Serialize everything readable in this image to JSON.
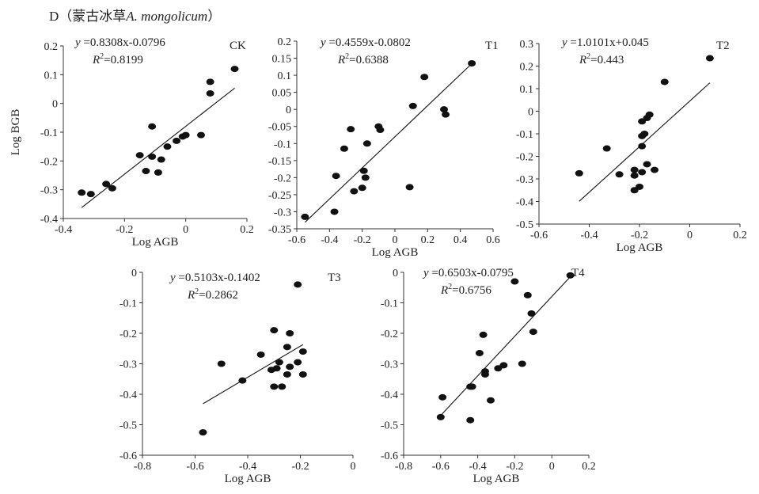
{
  "figure_title": {
    "prefix": "D（蒙古冰草",
    "latin": "A. mongolicum",
    "suffix": "）"
  },
  "chart_data": [
    {
      "type": "scatter",
      "panel_label": "CK",
      "xlabel": "Log AGB",
      "ylabel": "Log BGB",
      "xlim": [
        -0.4,
        0.2
      ],
      "ylim": [
        -0.4,
        0.2
      ],
      "xticks": [
        -0.4,
        -0.2,
        0,
        0.2
      ],
      "yticks": [
        -0.4,
        -0.3,
        -0.2,
        -0.1,
        0,
        0.1,
        0.2
      ],
      "equation": {
        "slope": "0.8308",
        "intercept": "-0.0796",
        "r2": "0.8199"
      },
      "fit": {
        "slope": 0.8308,
        "intercept": -0.0796,
        "x_range": [
          -0.34,
          0.16
        ]
      },
      "points": [
        [
          -0.34,
          -0.31
        ],
        [
          -0.31,
          -0.315
        ],
        [
          -0.26,
          -0.28
        ],
        [
          -0.24,
          -0.295
        ],
        [
          -0.15,
          -0.18
        ],
        [
          -0.13,
          -0.235
        ],
        [
          -0.11,
          -0.08
        ],
        [
          -0.11,
          -0.185
        ],
        [
          -0.09,
          -0.24
        ],
        [
          -0.08,
          -0.195
        ],
        [
          -0.06,
          -0.15
        ],
        [
          -0.03,
          -0.13
        ],
        [
          -0.01,
          -0.115
        ],
        [
          0.0,
          -0.11
        ],
        [
          0.05,
          -0.11
        ],
        [
          0.08,
          0.075
        ],
        [
          0.08,
          0.035
        ],
        [
          0.16,
          0.12
        ]
      ]
    },
    {
      "type": "scatter",
      "panel_label": "T1",
      "xlabel": "Log AGB",
      "ylabel": "",
      "xlim": [
        -0.6,
        0.6
      ],
      "ylim": [
        -0.35,
        0.2
      ],
      "xticks": [
        -0.6,
        -0.4,
        -0.2,
        0,
        0.2,
        0.4,
        0.6
      ],
      "yticks": [
        -0.35,
        -0.3,
        -0.25,
        -0.2,
        -0.15,
        -0.1,
        -0.05,
        0,
        0.05,
        0.1,
        0.15,
        0.2
      ],
      "equation": {
        "slope": "0.4559",
        "intercept": "-0.0802",
        "r2": "0.6388"
      },
      "fit": {
        "slope": 0.4559,
        "intercept": -0.0802,
        "x_range": [
          -0.55,
          0.47
        ]
      },
      "points": [
        [
          -0.55,
          -0.315
        ],
        [
          -0.37,
          -0.3
        ],
        [
          -0.36,
          -0.195
        ],
        [
          -0.31,
          -0.115
        ],
        [
          -0.27,
          -0.058
        ],
        [
          -0.25,
          -0.24
        ],
        [
          -0.2,
          -0.23
        ],
        [
          -0.19,
          -0.18
        ],
        [
          -0.18,
          -0.2
        ],
        [
          -0.17,
          -0.1
        ],
        [
          -0.1,
          -0.05
        ],
        [
          -0.09,
          -0.06
        ],
        [
          0.09,
          -0.228
        ],
        [
          0.11,
          0.01
        ],
        [
          0.18,
          0.095
        ],
        [
          0.3,
          0.0
        ],
        [
          0.31,
          -0.015
        ],
        [
          0.47,
          0.135
        ]
      ]
    },
    {
      "type": "scatter",
      "panel_label": "T2",
      "xlabel": "Log AGB",
      "ylabel": "",
      "xlim": [
        -0.6,
        0.2
      ],
      "ylim": [
        -0.5,
        0.3
      ],
      "xticks": [
        -0.6,
        -0.4,
        -0.2,
        0,
        0.2
      ],
      "yticks": [
        -0.5,
        -0.4,
        -0.3,
        -0.2,
        -0.1,
        0,
        0.1,
        0.2,
        0.3
      ],
      "equation": {
        "slope": "1.0101",
        "intercept": "+0.045",
        "r2": "0.443"
      },
      "fit": {
        "slope": 1.0101,
        "intercept": 0.045,
        "x_range": [
          -0.44,
          0.08
        ]
      },
      "points": [
        [
          -0.44,
          -0.275
        ],
        [
          -0.33,
          -0.165
        ],
        [
          -0.28,
          -0.28
        ],
        [
          -0.22,
          -0.26
        ],
        [
          -0.22,
          -0.285
        ],
        [
          -0.22,
          -0.35
        ],
        [
          -0.2,
          -0.335
        ],
        [
          -0.19,
          -0.045
        ],
        [
          -0.19,
          -0.11
        ],
        [
          -0.19,
          -0.155
        ],
        [
          -0.19,
          -0.27
        ],
        [
          -0.18,
          -0.1
        ],
        [
          -0.17,
          -0.03
        ],
        [
          -0.17,
          -0.235
        ],
        [
          -0.16,
          -0.015
        ],
        [
          -0.14,
          -0.26
        ],
        [
          -0.1,
          0.13
        ],
        [
          0.08,
          0.235
        ]
      ]
    },
    {
      "type": "scatter",
      "panel_label": "T3",
      "xlabel": "Log AGB",
      "ylabel": "",
      "xlim": [
        -0.8,
        0
      ],
      "ylim": [
        -0.6,
        0
      ],
      "xticks": [
        -0.8,
        -0.6,
        -0.4,
        -0.2,
        0
      ],
      "yticks": [
        -0.6,
        -0.5,
        -0.4,
        -0.3,
        -0.2,
        -0.1,
        0
      ],
      "equation": {
        "slope": "0.5103",
        "intercept": "-0.1402",
        "r2": "0.2862"
      },
      "fit": {
        "slope": 0.5103,
        "intercept": -0.1402,
        "x_range": [
          -0.57,
          -0.19
        ]
      },
      "points": [
        [
          -0.57,
          -0.525
        ],
        [
          -0.5,
          -0.3
        ],
        [
          -0.42,
          -0.355
        ],
        [
          -0.35,
          -0.27
        ],
        [
          -0.31,
          -0.32
        ],
        [
          -0.3,
          -0.19
        ],
        [
          -0.3,
          -0.375
        ],
        [
          -0.29,
          -0.315
        ],
        [
          -0.28,
          -0.295
        ],
        [
          -0.27,
          -0.375
        ],
        [
          -0.25,
          -0.245
        ],
        [
          -0.25,
          -0.335
        ],
        [
          -0.24,
          -0.2
        ],
        [
          -0.24,
          -0.31
        ],
        [
          -0.21,
          -0.04
        ],
        [
          -0.21,
          -0.295
        ],
        [
          -0.19,
          -0.26
        ],
        [
          -0.19,
          -0.335
        ]
      ]
    },
    {
      "type": "scatter",
      "panel_label": "T4",
      "xlabel": "Log AGB",
      "ylabel": "",
      "xlim": [
        -0.8,
        0.2
      ],
      "ylim": [
        -0.6,
        0
      ],
      "xticks": [
        -0.8,
        -0.6,
        -0.4,
        -0.2,
        0,
        0.2
      ],
      "yticks": [
        -0.6,
        -0.5,
        -0.4,
        -0.3,
        -0.2,
        -0.1,
        0
      ],
      "equation": {
        "slope": "0.6503",
        "intercept": "-0.0795",
        "r2": "0.6756"
      },
      "fit": {
        "slope": 0.6503,
        "intercept": -0.0795,
        "x_range": [
          -0.6,
          0.1
        ]
      },
      "points": [
        [
          -0.6,
          -0.475
        ],
        [
          -0.59,
          -0.41
        ],
        [
          -0.44,
          -0.375
        ],
        [
          -0.44,
          -0.485
        ],
        [
          -0.43,
          -0.375
        ],
        [
          -0.39,
          -0.265
        ],
        [
          -0.37,
          -0.205
        ],
        [
          -0.36,
          -0.325
        ],
        [
          -0.36,
          -0.335
        ],
        [
          -0.33,
          -0.42
        ],
        [
          -0.29,
          -0.315
        ],
        [
          -0.26,
          -0.305
        ],
        [
          -0.2,
          -0.03
        ],
        [
          -0.16,
          -0.3
        ],
        [
          -0.13,
          -0.075
        ],
        [
          -0.11,
          -0.135
        ],
        [
          -0.1,
          -0.195
        ],
        [
          0.1,
          -0.01
        ]
      ]
    }
  ]
}
